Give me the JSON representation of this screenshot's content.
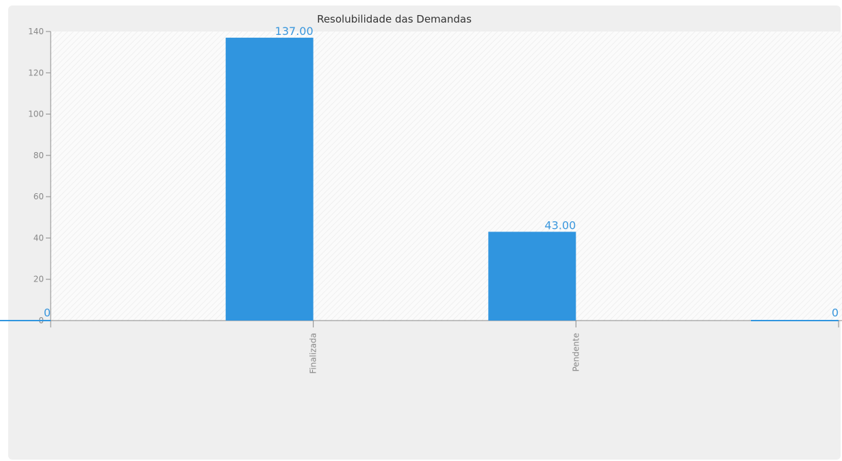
{
  "chart_data": {
    "type": "bar",
    "title": "Resolubilidade das Demandas",
    "categories": [
      "",
      "Finalizada",
      "Pendente",
      ""
    ],
    "values": [
      0,
      137,
      43,
      0
    ],
    "data_labels": [
      "0",
      "137.00",
      "43.00",
      "0"
    ],
    "y_ticks": [
      "0",
      "20",
      "40",
      "60",
      "80",
      "100",
      "120",
      "140"
    ],
    "ylim": [
      0,
      140
    ],
    "bar_color": "#3095df",
    "label_color": "#3a97dd"
  }
}
